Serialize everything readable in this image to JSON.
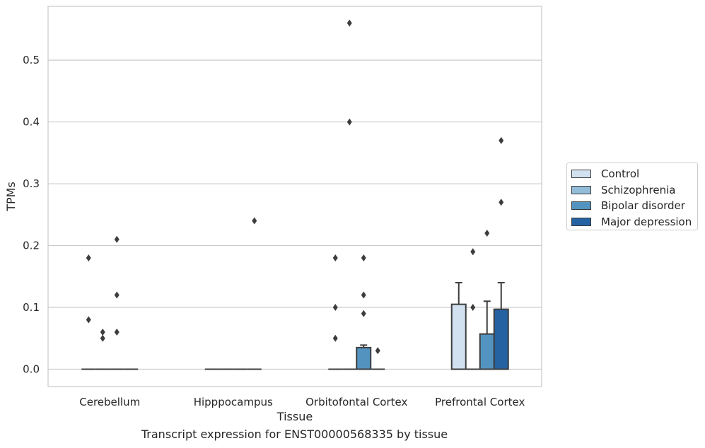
{
  "chart_data": {
    "type": "bar",
    "title": "",
    "caption": "Transcript expression for ENST00000568335 by tissue",
    "xlabel": "Tissue",
    "ylabel": "TPMs",
    "ylim": [
      -0.028,
      0.587
    ],
    "yticks": [
      "0.0",
      "0.1",
      "0.2",
      "0.3",
      "0.4",
      "0.5"
    ],
    "grid": "horizontal",
    "legend_position": "right",
    "categories": [
      "Cerebellum",
      "Hipppocampus",
      "Orbitofontal Cortex",
      "Prefrontal Cortex"
    ],
    "series": [
      {
        "name": "Control",
        "color": "#d1e1f0",
        "values": [
          0.0,
          0.0,
          0.0,
          0.105
        ],
        "error_high": [
          null,
          null,
          null,
          0.14
        ],
        "outliers": [
          [
            0.18,
            0.08
          ],
          [],
          [
            0.18,
            0.1,
            0.05
          ],
          []
        ]
      },
      {
        "name": "Schizophrenia",
        "color": "#93bcd9",
        "values": [
          0.0,
          0.0,
          0.0,
          0.0
        ],
        "error_high": [
          null,
          null,
          null,
          null
        ],
        "outliers": [
          [
            0.06,
            0.05
          ],
          [],
          [
            0.56,
            0.4
          ],
          [
            0.19,
            0.1
          ]
        ]
      },
      {
        "name": "Bipolar disorder",
        "color": "#5393c0",
        "values": [
          0.0,
          0.0,
          0.035,
          0.057
        ],
        "error_high": [
          null,
          null,
          0.039,
          0.11
        ],
        "outliers": [
          [
            0.21,
            0.12,
            0.06
          ],
          [],
          [
            0.18,
            0.12,
            0.09
          ],
          [
            0.22
          ]
        ]
      },
      {
        "name": "Major depression",
        "color": "#2462a2",
        "values": [
          0.0,
          0.0,
          0.0,
          0.097
        ],
        "error_high": [
          null,
          null,
          null,
          0.14
        ],
        "outliers": [
          [],
          [
            0.24
          ],
          [
            0.03
          ],
          [
            0.37,
            0.27
          ]
        ]
      }
    ]
  }
}
